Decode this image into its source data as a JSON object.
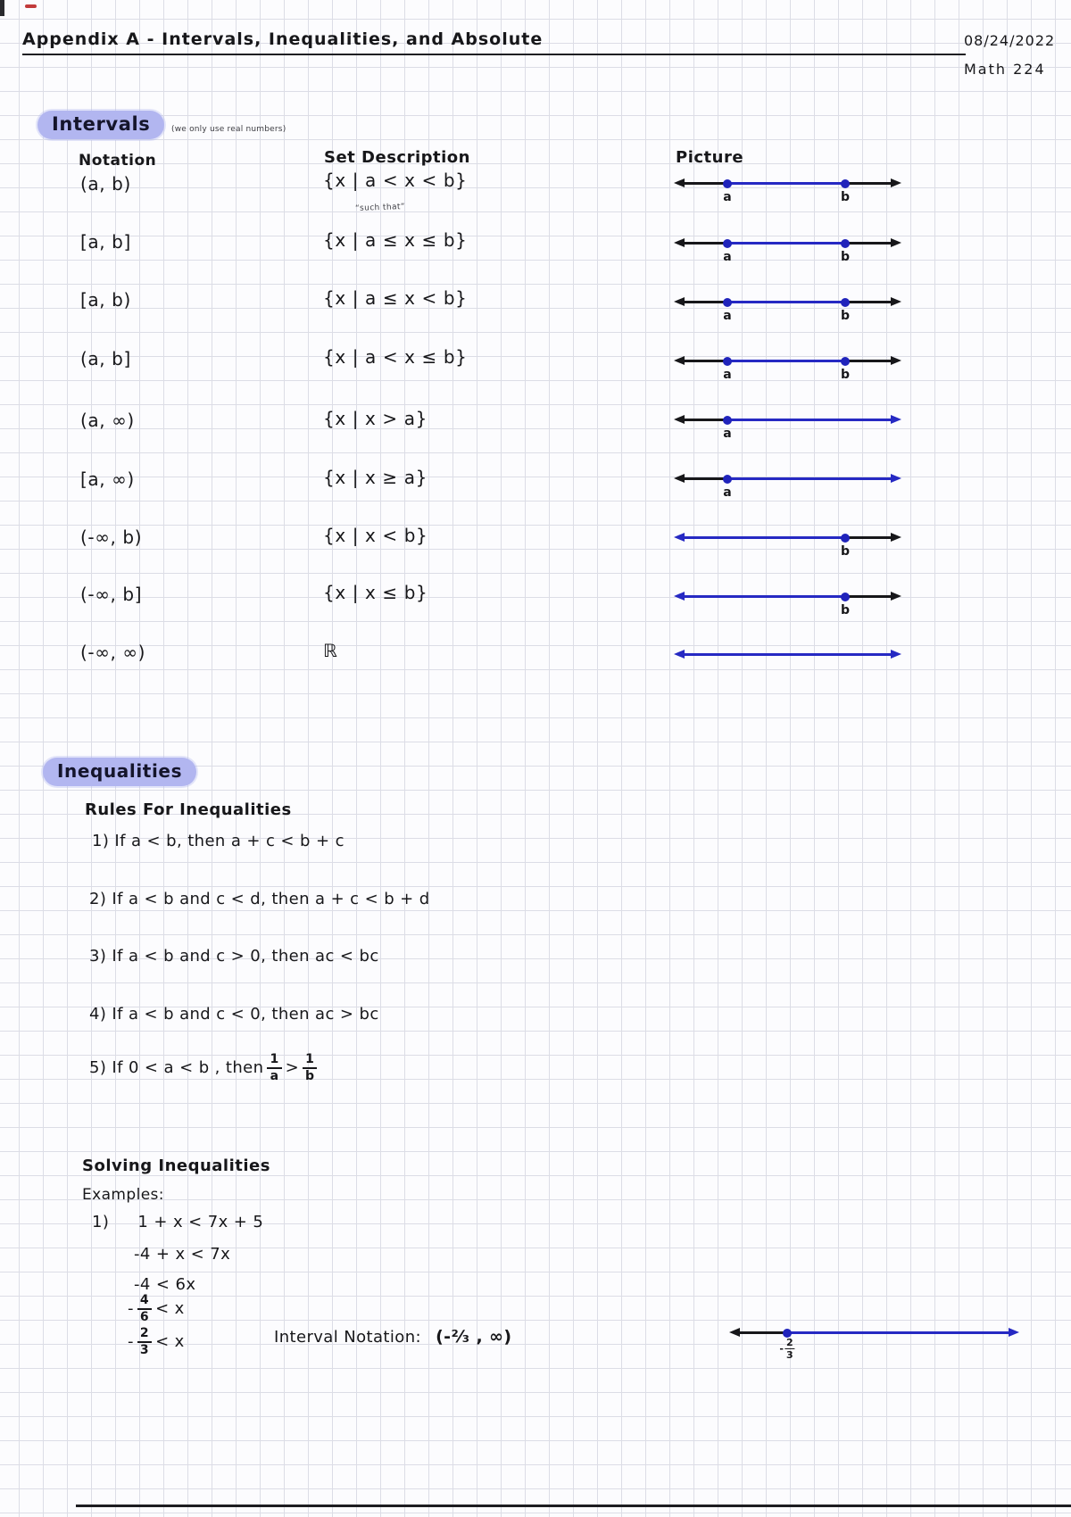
{
  "header": {
    "title": "Appendix A - Intervals, Inequalities, and Absolute",
    "date": "08/24/2022",
    "course": "Math 224"
  },
  "intervals": {
    "heading": "Intervals",
    "note": "(we only use real numbers)",
    "col_notation": "Notation",
    "col_set": "Set Description",
    "col_picture": "Picture",
    "such_that": "“such that”",
    "rows": [
      {
        "notation": "(a, b)",
        "set": "{x | a < x < b}",
        "picture": {
          "kind": "between",
          "a_label": "a",
          "b_label": "b"
        }
      },
      {
        "notation": "[a, b]",
        "set": "{x | a ≤ x ≤ b}",
        "picture": {
          "kind": "between",
          "a_label": "a",
          "b_label": "b"
        }
      },
      {
        "notation": "[a, b)",
        "set": "{x | a ≤ x < b}",
        "picture": {
          "kind": "between",
          "a_label": "a",
          "b_label": "b"
        }
      },
      {
        "notation": "(a, b]",
        "set": "{x | a < x ≤ b}",
        "picture": {
          "kind": "between",
          "a_label": "a",
          "b_label": "b"
        }
      },
      {
        "notation": "(a, ∞)",
        "set": "{x | x > a}",
        "picture": {
          "kind": "right_ray",
          "a_label": "a"
        }
      },
      {
        "notation": "[a, ∞)",
        "set": "{x | x ≥ a}",
        "picture": {
          "kind": "right_ray",
          "a_label": "a"
        }
      },
      {
        "notation": "(-∞, b)",
        "set": "{x | x < b}",
        "picture": {
          "kind": "left_ray",
          "b_label": "b"
        }
      },
      {
        "notation": "(-∞, b]",
        "set": "{x | x ≤ b}",
        "picture": {
          "kind": "left_ray",
          "b_label": "b"
        }
      },
      {
        "notation": "(-∞, ∞)",
        "set": "ℝ",
        "picture": {
          "kind": "full"
        }
      }
    ]
  },
  "inequalities": {
    "heading": "Inequalities",
    "rules_heading": "Rules For Inequalities",
    "rules": [
      "1) If  a < b,  then  a + c < b + c",
      "2) If  a < b  and  c < d,  then  a + c < b + d",
      "3) If  a < b  and  c > 0,  then  ac < bc",
      "4) If  a < b  and  c < 0,  then  ac > bc"
    ],
    "rule5": {
      "prefix": "5) If  0 < a < b ,  then",
      "f1n": "1",
      "f1d": "a",
      "op": ">",
      "f2n": "1",
      "f2d": "b"
    }
  },
  "solving": {
    "heading": "Solving Inequalities",
    "examples_label": "Examples:",
    "example_number": "1)",
    "steps": [
      "1 + x < 7x + 5",
      "-4 + x < 7x",
      "-4 < 6x"
    ],
    "frac_steps": [
      {
        "sign": "-",
        "num": "4",
        "den": "6",
        "rest": "< x"
      },
      {
        "sign": "-",
        "num": "2",
        "den": "3",
        "rest": "< x"
      }
    ],
    "interval_label": "Interval Notation:",
    "interval_value": "(-²⁄₃ , ∞)",
    "picture": {
      "kind": "right_ray",
      "frac_label": {
        "sign": "-",
        "num": "2",
        "den": "3"
      }
    },
    "colors": {
      "ink": "#17171a",
      "blue": "#2629c3",
      "highlight": "#b2b6f0"
    }
  }
}
